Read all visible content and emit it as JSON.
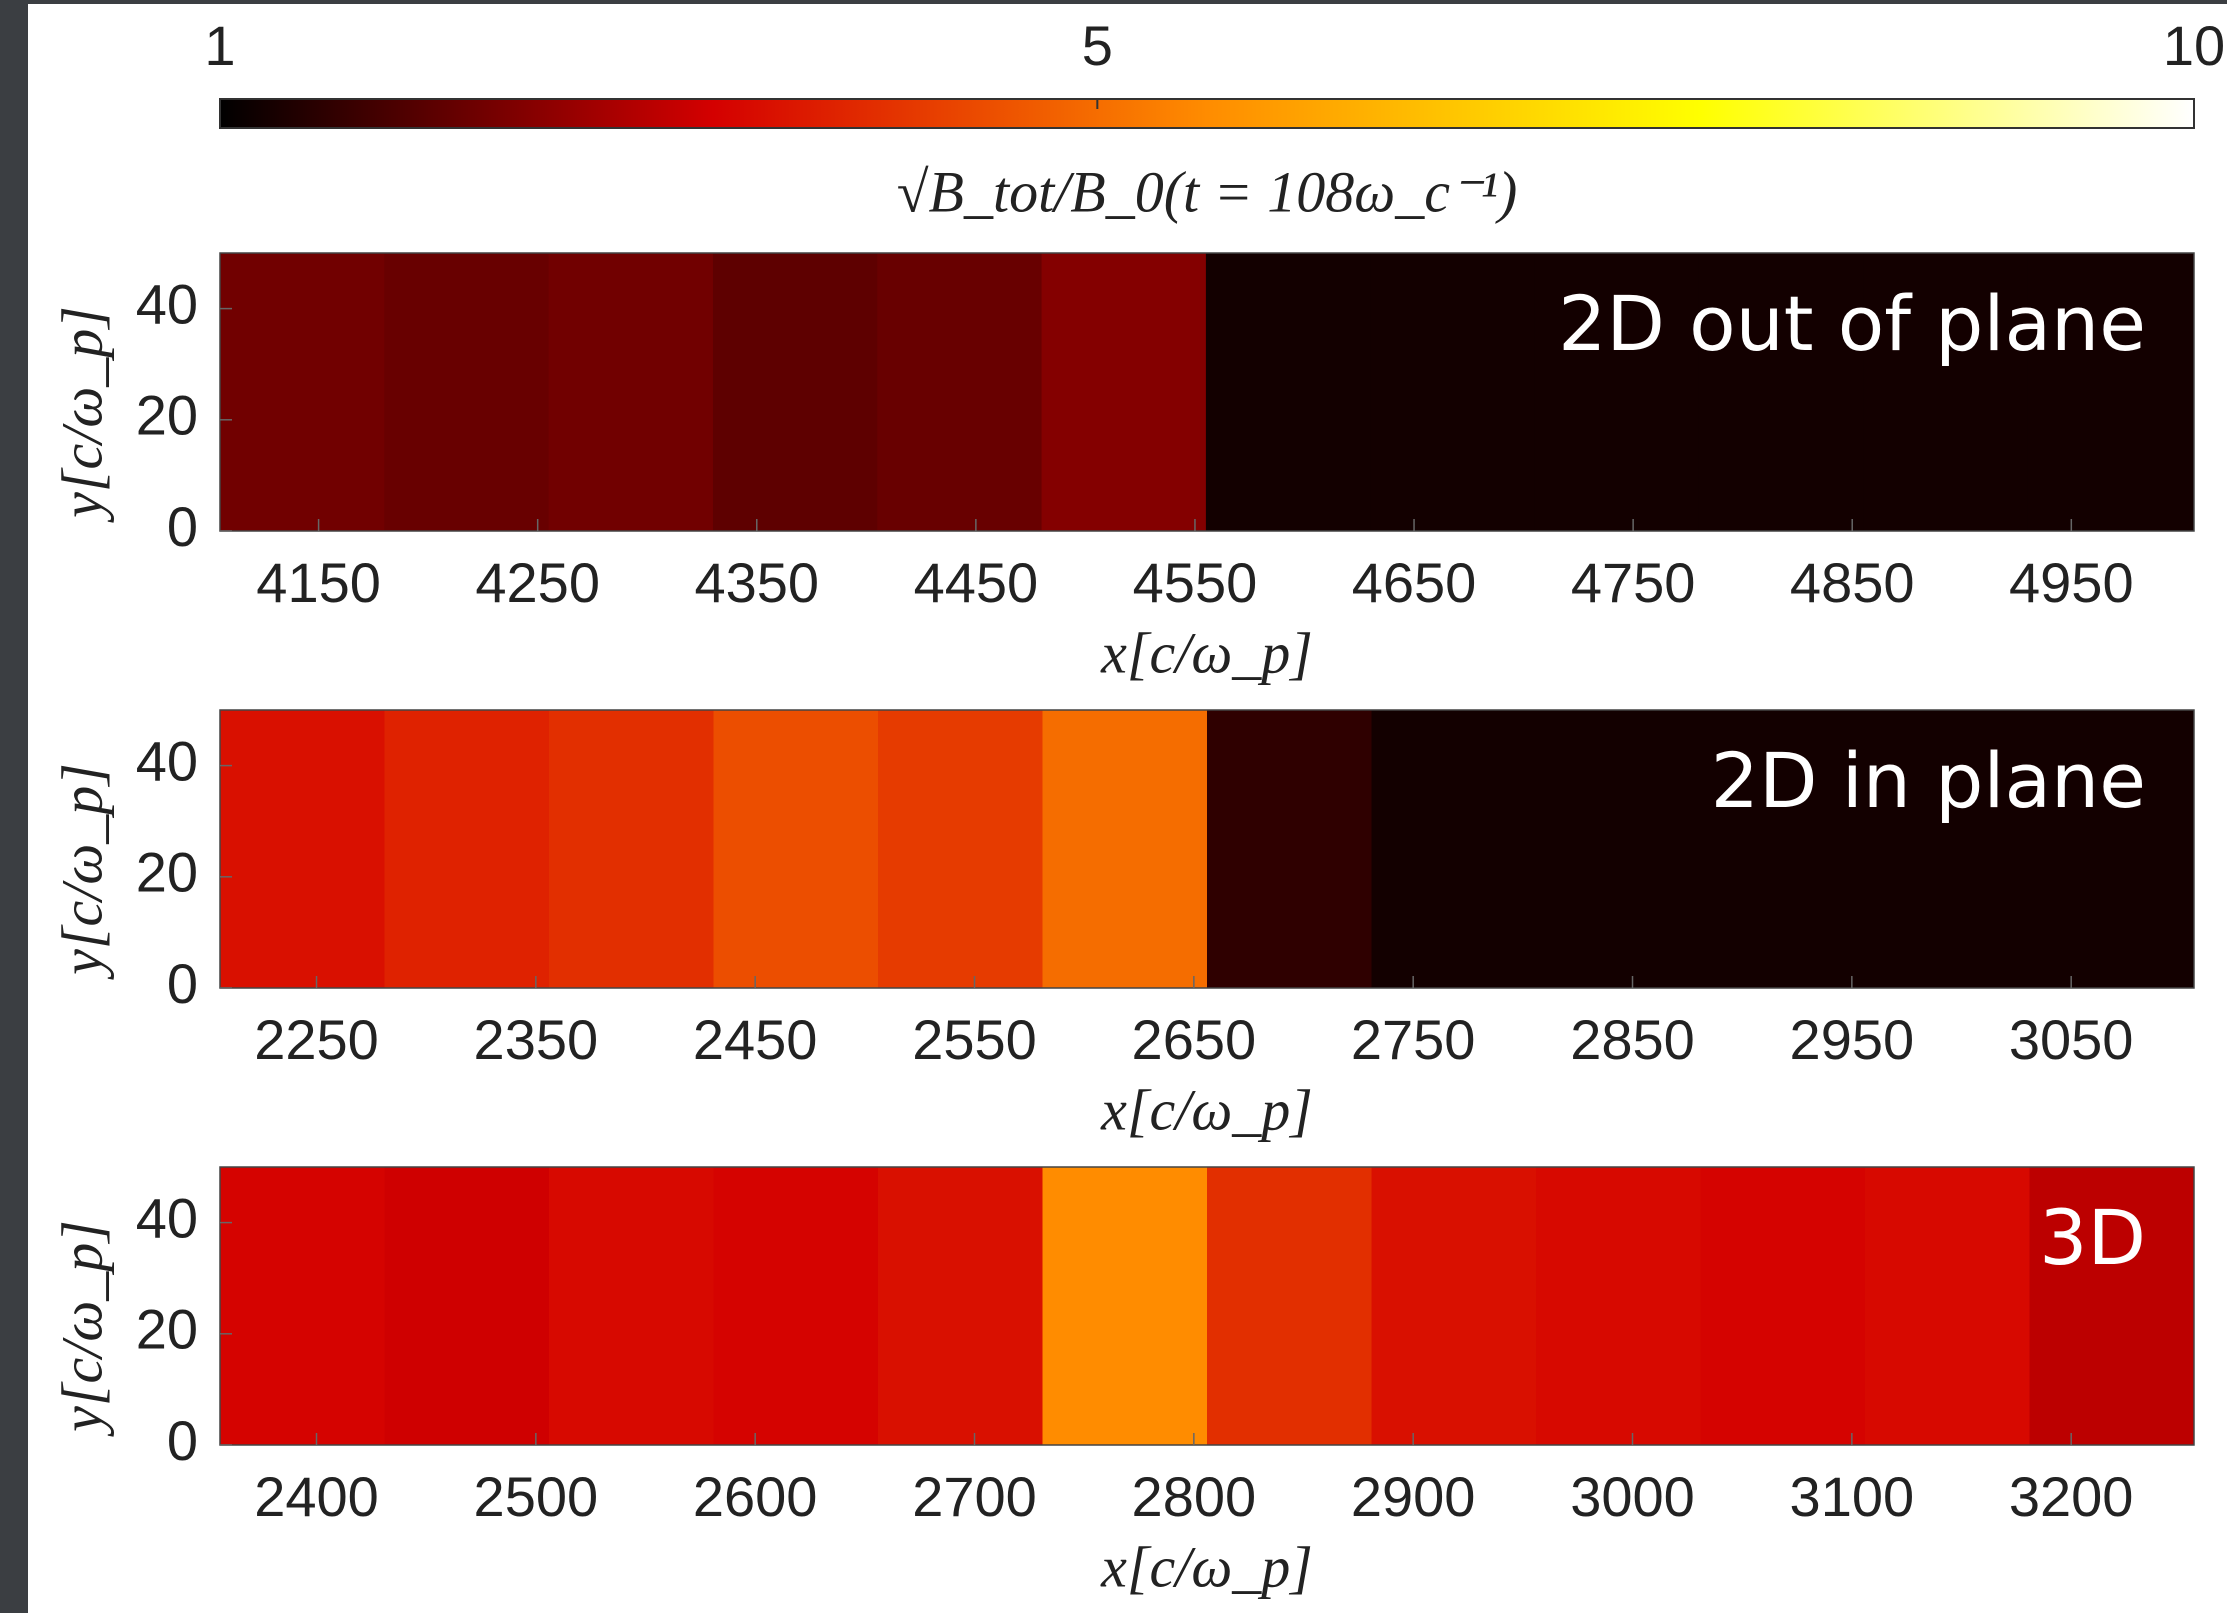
{
  "colorbar": {
    "label": "√B_tot/B_0(t = 108ω_c⁻¹)",
    "clim": [
      1,
      10
    ],
    "ticks": [
      1,
      5,
      10
    ],
    "colormap": [
      "#000000",
      "#d40000",
      "#ff8c00",
      "#ffff00",
      "#ffffff"
    ]
  },
  "chart_data": [
    {
      "type": "heatmap",
      "annotation": "2D out of plane",
      "xlabel": "x[c/ω_p]",
      "ylabel": "y[c/ω_p]",
      "x_edges": [
        4105,
        4180,
        4255,
        4330,
        4405,
        4480,
        4555,
        4630,
        4705,
        4780,
        4855,
        4930,
        5006
      ],
      "values": [
        2.2,
        2.1,
        2.2,
        2.0,
        2.1,
        2.4,
        1.2,
        1.2,
        1.2,
        1.2,
        1.2,
        1.2
      ],
      "xlim": [
        4105,
        5006
      ],
      "xticks": [
        4150,
        4250,
        4350,
        4450,
        4550,
        4650,
        4750,
        4850,
        4950
      ],
      "ylim": [
        0,
        50
      ],
      "yticks": [
        0,
        20,
        40
      ]
    },
    {
      "type": "heatmap",
      "annotation": "2D in plane",
      "xlabel": "x[c/ω_p]",
      "ylabel": "y[c/ω_p]",
      "x_edges": [
        2206,
        2281,
        2356,
        2431,
        2506,
        2581,
        2656,
        2731,
        2806,
        2881,
        2956,
        3031,
        3106
      ],
      "values": [
        3.5,
        3.8,
        4.0,
        4.5,
        4.2,
        5.0,
        1.5,
        1.2,
        1.2,
        1.2,
        1.2,
        1.2
      ],
      "xlim": [
        2206,
        3106
      ],
      "xticks": [
        2250,
        2350,
        2450,
        2550,
        2650,
        2750,
        2850,
        2950,
        3050
      ],
      "ylim": [
        0,
        50
      ],
      "yticks": [
        0,
        20,
        40
      ]
    },
    {
      "type": "heatmap",
      "annotation": "3D",
      "xlabel": "x[c/ω_p]",
      "ylabel": "y[c/ω_p]",
      "x_edges": [
        2356,
        2431,
        2506,
        2581,
        2656,
        2731,
        2806,
        2881,
        2956,
        3031,
        3106,
        3181,
        3256
      ],
      "values": [
        3.3,
        3.2,
        3.4,
        3.3,
        3.5,
        5.5,
        4.0,
        3.5,
        3.4,
        3.3,
        3.4,
        3.0
      ],
      "xlim": [
        2356,
        3256
      ],
      "xticks": [
        2400,
        2500,
        2600,
        2700,
        2800,
        2900,
        3000,
        3100,
        3200
      ],
      "ylim": [
        0,
        50
      ],
      "yticks": [
        0,
        20,
        40
      ]
    }
  ]
}
